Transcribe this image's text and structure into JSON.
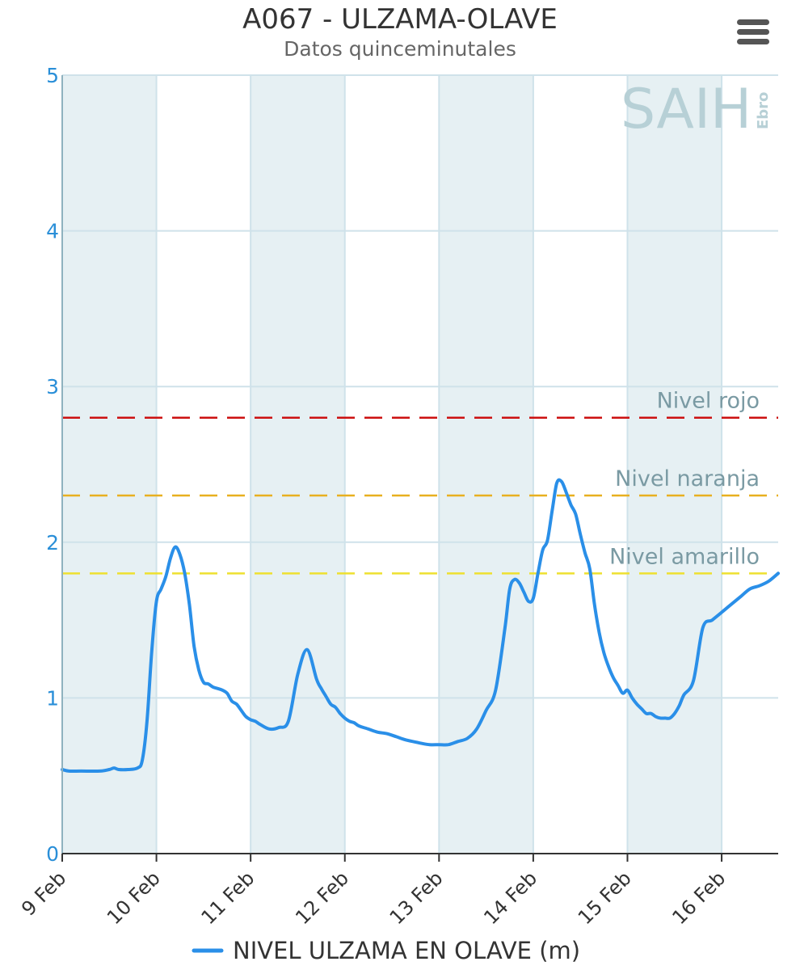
{
  "header": {
    "menu_icon": "hamburger-menu-icon"
  },
  "watermark": {
    "main": "SAIH",
    "sub": "Ebro"
  },
  "colors": {
    "series": "#2a8fe8",
    "band": "#e6f0f3",
    "grid": "#cfe2ea",
    "rojo": "#cc1111",
    "naranja": "#e8b020",
    "amarillo": "#eee030"
  },
  "chart_data": {
    "type": "line",
    "title": "A067 - ULZAMA-OLAVE",
    "subtitle": "Datos quinceminutales",
    "xlabel": "",
    "ylabel": "",
    "ylim": [
      0,
      5
    ],
    "yticks": [
      0,
      1,
      2,
      3,
      4,
      5
    ],
    "xlim": [
      0,
      7.6
    ],
    "xticks": [
      {
        "pos": 0,
        "label": "9 Feb"
      },
      {
        "pos": 1,
        "label": "10 Feb"
      },
      {
        "pos": 2,
        "label": "11 Feb"
      },
      {
        "pos": 3,
        "label": "12 Feb"
      },
      {
        "pos": 4,
        "label": "13 Feb"
      },
      {
        "pos": 5,
        "label": "14 Feb"
      },
      {
        "pos": 6,
        "label": "15 Feb"
      },
      {
        "pos": 7,
        "label": "16 Feb"
      }
    ],
    "shaded_days": [
      [
        0,
        1
      ],
      [
        2,
        3
      ],
      [
        4,
        5
      ],
      [
        6,
        7
      ]
    ],
    "grid": true,
    "legend_position": "bottom",
    "thresholds": [
      {
        "name": "Nivel rojo",
        "value": 2.8,
        "color": "#cc1111"
      },
      {
        "name": "Nivel naranja",
        "value": 2.3,
        "color": "#e8b020"
      },
      {
        "name": "Nivel amarillo",
        "value": 1.8,
        "color": "#eee030"
      }
    ],
    "series": [
      {
        "name": "NIVEL ULZAMA EN OLAVE (m)",
        "color": "#2a8fe8",
        "x": [
          0,
          0.07,
          0.2,
          0.4,
          0.5,
          0.55,
          0.6,
          0.7,
          0.8,
          0.85,
          0.9,
          0.95,
          1.0,
          1.05,
          1.1,
          1.15,
          1.2,
          1.25,
          1.3,
          1.35,
          1.4,
          1.45,
          1.5,
          1.55,
          1.6,
          1.65,
          1.7,
          1.75,
          1.8,
          1.85,
          1.9,
          1.95,
          2.0,
          2.05,
          2.1,
          2.2,
          2.3,
          2.4,
          2.5,
          2.6,
          2.7,
          2.75,
          2.8,
          2.85,
          2.9,
          2.95,
          3.0,
          3.05,
          3.1,
          3.15,
          3.25,
          3.35,
          3.45,
          3.55,
          3.65,
          3.8,
          3.9,
          4.0,
          4.1,
          4.2,
          4.3,
          4.4,
          4.5,
          4.6,
          4.7,
          4.75,
          4.8,
          4.85,
          4.9,
          4.95,
          5.0,
          5.05,
          5.1,
          5.15,
          5.2,
          5.25,
          5.3,
          5.35,
          5.4,
          5.45,
          5.5,
          5.55,
          5.6,
          5.65,
          5.7,
          5.75,
          5.8,
          5.85,
          5.9,
          5.95,
          6.0,
          6.05,
          6.1,
          6.15,
          6.2,
          6.25,
          6.3,
          6.35,
          6.4,
          6.45,
          6.5,
          6.55,
          6.6,
          6.7,
          6.8,
          6.9,
          7.0,
          7.1,
          7.2,
          7.3,
          7.4,
          7.5,
          7.6
        ],
        "values": [
          0.54,
          0.53,
          0.53,
          0.53,
          0.54,
          0.55,
          0.54,
          0.54,
          0.55,
          0.6,
          0.85,
          1.3,
          1.62,
          1.7,
          1.78,
          1.9,
          1.97,
          1.92,
          1.8,
          1.6,
          1.33,
          1.18,
          1.1,
          1.09,
          1.07,
          1.06,
          1.05,
          1.03,
          0.98,
          0.96,
          0.92,
          0.88,
          0.86,
          0.85,
          0.83,
          0.8,
          0.81,
          0.85,
          1.15,
          1.31,
          1.12,
          1.06,
          1.01,
          0.96,
          0.94,
          0.9,
          0.87,
          0.85,
          0.84,
          0.82,
          0.8,
          0.78,
          0.77,
          0.75,
          0.73,
          0.71,
          0.7,
          0.7,
          0.7,
          0.72,
          0.74,
          0.8,
          0.92,
          1.05,
          1.45,
          1.7,
          1.76,
          1.74,
          1.68,
          1.62,
          1.64,
          1.8,
          1.95,
          2.01,
          2.2,
          2.38,
          2.39,
          2.32,
          2.24,
          2.18,
          2.05,
          1.93,
          1.83,
          1.6,
          1.42,
          1.29,
          1.2,
          1.13,
          1.08,
          1.03,
          1.05,
          1.0,
          0.96,
          0.93,
          0.9,
          0.9,
          0.88,
          0.87,
          0.87,
          0.87,
          0.9,
          0.95,
          1.02,
          1.11,
          1.45,
          1.5,
          1.55,
          1.6,
          1.65,
          1.7,
          1.72,
          1.75,
          1.8
        ]
      }
    ]
  }
}
